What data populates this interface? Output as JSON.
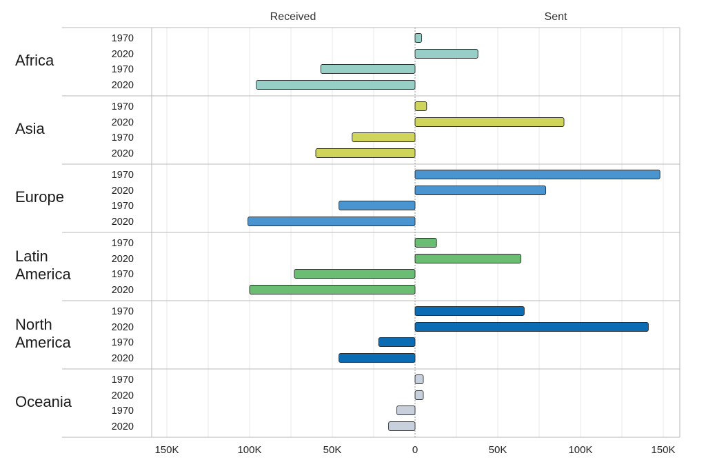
{
  "chart_data": {
    "type": "bar",
    "orientation": "horizontal-diverging",
    "panels": [
      "Received",
      "Sent"
    ],
    "xlim": [
      -160000,
      160000
    ],
    "x_ticks": [
      -150000,
      -100000,
      -50000,
      0,
      50000,
      100000,
      150000
    ],
    "x_tick_labels": [
      "150K",
      "100K",
      "50K",
      "0",
      "50K",
      "100K",
      "150K"
    ],
    "grid": true,
    "legend": "none",
    "groups": [
      {
        "name": "Africa",
        "color": "#97cfc6",
        "sent": [
          {
            "year": "1970",
            "value": 4000
          },
          {
            "year": "2020",
            "value": 38000
          }
        ],
        "received": [
          {
            "year": "1970",
            "value": 57000
          },
          {
            "year": "2020",
            "value": 96000
          }
        ]
      },
      {
        "name": "Asia",
        "color": "#cfd55a",
        "sent": [
          {
            "year": "1970",
            "value": 7000
          },
          {
            "year": "2020",
            "value": 90000
          }
        ],
        "received": [
          {
            "year": "1970",
            "value": 38000
          },
          {
            "year": "2020",
            "value": 60000
          }
        ]
      },
      {
        "name": "Europe",
        "color": "#4a94cf",
        "sent": [
          {
            "year": "1970",
            "value": 148000
          },
          {
            "year": "2020",
            "value": 79000
          }
        ],
        "received": [
          {
            "year": "1970",
            "value": 46000
          },
          {
            "year": "2020",
            "value": 101000
          }
        ]
      },
      {
        "name": "Latin America",
        "color": "#6abd72",
        "sent": [
          {
            "year": "1970",
            "value": 13000
          },
          {
            "year": "2020",
            "value": 64000
          }
        ],
        "received": [
          {
            "year": "1970",
            "value": 73000
          },
          {
            "year": "2020",
            "value": 100000
          }
        ]
      },
      {
        "name": "North America",
        "color": "#0b6cb4",
        "sent": [
          {
            "year": "1970",
            "value": 66000
          },
          {
            "year": "2020",
            "value": 141000
          }
        ],
        "received": [
          {
            "year": "1970",
            "value": 22000
          },
          {
            "year": "2020",
            "value": 46000
          }
        ]
      },
      {
        "name": "Oceania",
        "color": "#c7d0dc",
        "sent": [
          {
            "year": "1970",
            "value": 5000
          },
          {
            "year": "2020",
            "value": 5000
          }
        ],
        "received": [
          {
            "year": "1970",
            "value": 11000
          },
          {
            "year": "2020",
            "value": 16000
          }
        ]
      }
    ]
  }
}
